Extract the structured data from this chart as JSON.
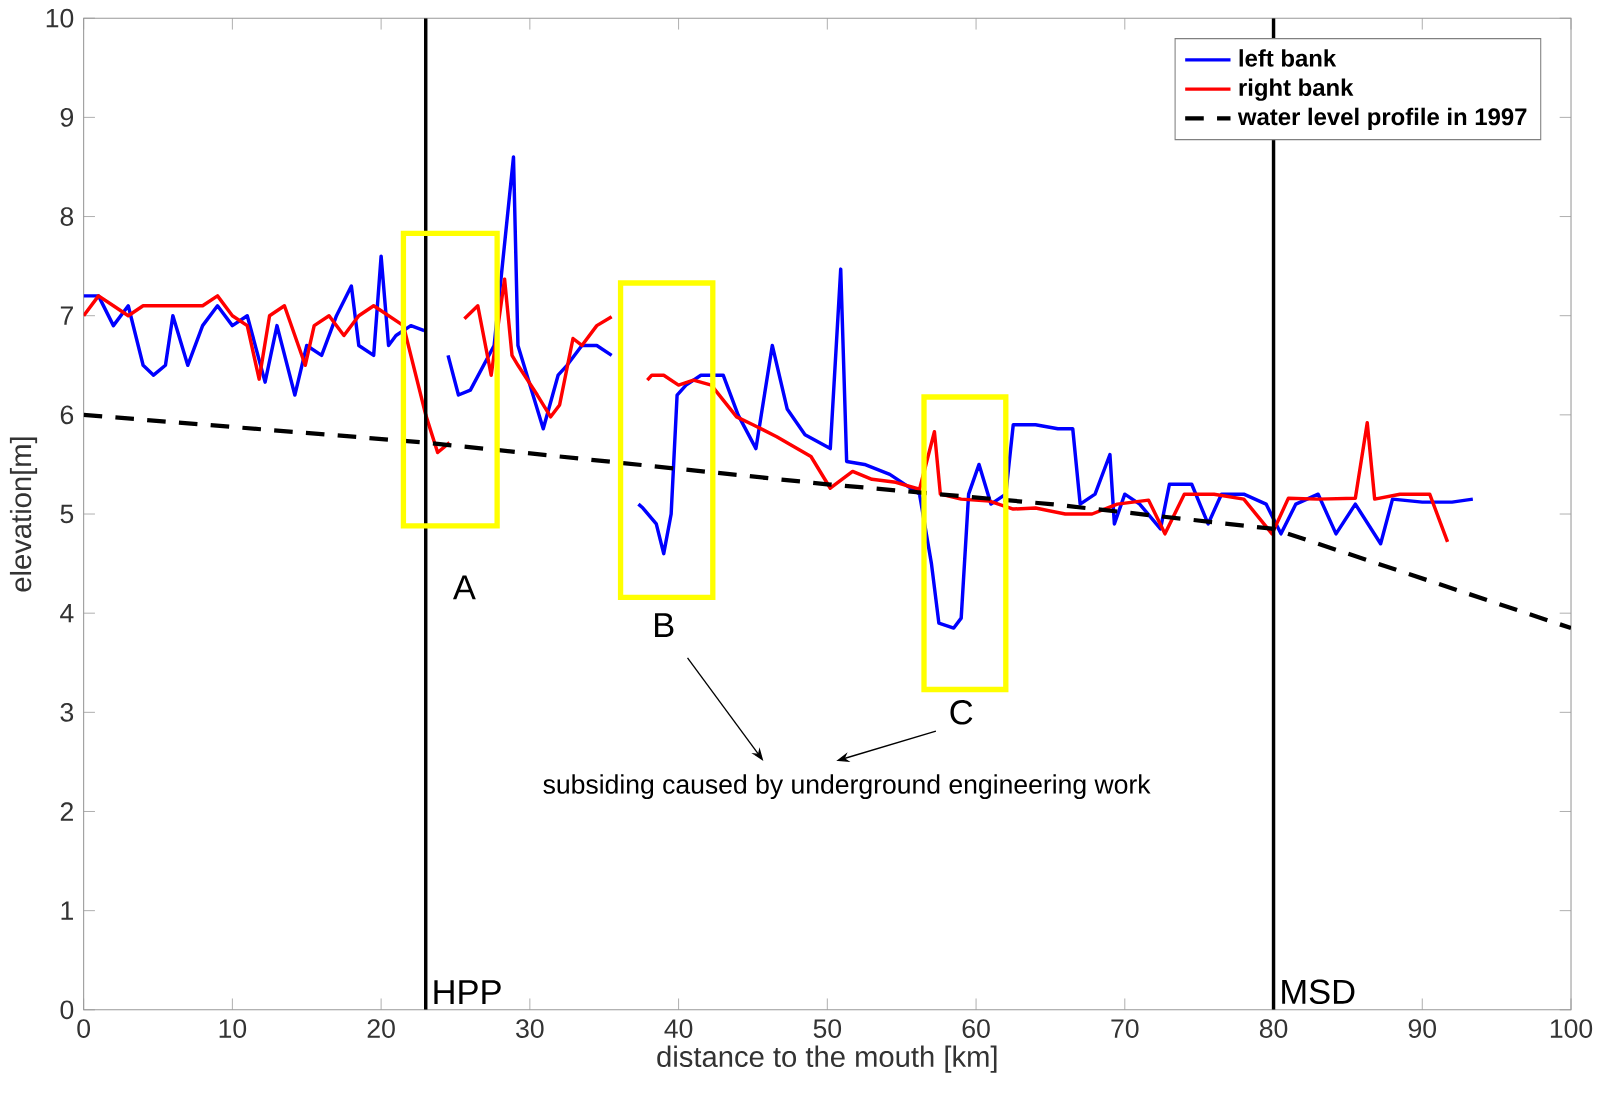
{
  "chart_data": {
    "type": "line",
    "xlabel": "distance to the mouth [km]",
    "ylabel": "elevation[m]",
    "xlim": [
      0,
      100
    ],
    "ylim": [
      0,
      10
    ],
    "xticks": [
      0,
      10,
      20,
      30,
      40,
      50,
      60,
      70,
      80,
      90,
      100
    ],
    "yticks": [
      0,
      1,
      2,
      3,
      4,
      5,
      6,
      7,
      8,
      9,
      10
    ],
    "grid": false,
    "legend": "top right",
    "series": [
      {
        "name": "left bank",
        "color": "#0000ff",
        "x": [
          0,
          1,
          2,
          3,
          4,
          4.7,
          5.5,
          6,
          7,
          8,
          9,
          10,
          11,
          12.2,
          13,
          14.2,
          15,
          16,
          17,
          18,
          18.5,
          19.5,
          20,
          20.5,
          21,
          22,
          22.9,
          23.8,
          24.5,
          25.2,
          26,
          27.6,
          28.9,
          29.2,
          30.9,
          31.9,
          32.5,
          33.5,
          34.5,
          35.5,
          36.5,
          37.3,
          37.6,
          38.5,
          39,
          39.5,
          39.9,
          40.5,
          41.5,
          43,
          44,
          45.2,
          46.3,
          47.3,
          48.5,
          50.2,
          50.9,
          51.3,
          52.5,
          54.2,
          56.2,
          57,
          57.5,
          58.5,
          59,
          59.5,
          60.2,
          61,
          62,
          62.5,
          64,
          65.5,
          66.5,
          67,
          68,
          69,
          69.3,
          70,
          71,
          72.4,
          73,
          74.5,
          75.6,
          76.5,
          78,
          79.5,
          80.5,
          81.5,
          83,
          84.2,
          85.5,
          87.2,
          88,
          90,
          92,
          93.4
        ],
        "values": [
          7.2,
          7.2,
          6.9,
          7.1,
          6.5,
          6.4,
          6.5,
          7.0,
          6.5,
          6.9,
          7.1,
          6.9,
          7.0,
          6.33,
          6.9,
          6.2,
          6.7,
          6.6,
          7.0,
          7.3,
          6.7,
          6.6,
          7.6,
          6.7,
          6.8,
          6.9,
          6.85,
          null,
          6.6,
          6.2,
          6.25,
          6.7,
          8.6,
          6.7,
          5.86,
          6.4,
          6.5,
          6.7,
          6.7,
          6.6,
          null,
          5.1,
          5.06,
          4.9,
          4.6,
          5.0,
          6.2,
          6.3,
          6.4,
          6.4,
          6.0,
          5.66,
          6.7,
          6.06,
          5.8,
          5.66,
          7.47,
          5.53,
          5.5,
          5.4,
          5.2,
          4.5,
          3.9,
          3.85,
          3.95,
          5.2,
          5.5,
          5.1,
          5.2,
          5.9,
          5.9,
          5.86,
          5.86,
          5.1,
          5.2,
          5.6,
          4.9,
          5.2,
          5.1,
          4.85,
          5.3,
          5.3,
          4.9,
          5.2,
          5.2,
          5.1,
          4.8,
          5.1,
          5.2,
          4.8,
          5.1,
          4.7,
          5.15,
          5.12,
          5.12,
          5.15
        ]
      },
      {
        "name": "right bank",
        "color": "#ff0000",
        "x": [
          0,
          1,
          2,
          3,
          4,
          5,
          6,
          7,
          8,
          9,
          10,
          11,
          11.8,
          12.5,
          13.5,
          14.9,
          15.5,
          16.5,
          17.5,
          18.5,
          19.5,
          20.5,
          21.5,
          22.5,
          23,
          23.8,
          24.6,
          25.0,
          25.6,
          26.5,
          27.4,
          28.3,
          28.8,
          29.2,
          30.5,
          31.4,
          32,
          32.9,
          33.5,
          34.5,
          35.5,
          36.5,
          37.9,
          38.2,
          39,
          40,
          41,
          42.2,
          43.9,
          45,
          46.6,
          47.5,
          48.9,
          50.2,
          51.7,
          53,
          54.6,
          56.2,
          57.2,
          57.6,
          59,
          60.9,
          62.5,
          64,
          66,
          67.8,
          69.5,
          71.6,
          72.7,
          74,
          76,
          78,
          79.9,
          81,
          83,
          85.5,
          86.3,
          86.8,
          88.5,
          90.5,
          91.7
        ],
        "values": [
          7.0,
          7.2,
          7.1,
          7.0,
          7.1,
          7.1,
          7.1,
          7.1,
          7.1,
          7.2,
          7.0,
          6.9,
          6.36,
          7.0,
          7.1,
          6.5,
          6.9,
          7.0,
          6.8,
          7.0,
          7.1,
          7.0,
          6.9,
          6.3,
          6.0,
          5.62,
          5.72,
          null,
          6.97,
          7.1,
          6.4,
          7.37,
          6.6,
          6.5,
          6.2,
          5.98,
          6.1,
          6.77,
          6.7,
          6.9,
          6.99,
          null,
          6.35,
          6.4,
          6.4,
          6.3,
          6.35,
          6.3,
          5.98,
          5.9,
          5.78,
          5.7,
          5.58,
          5.26,
          5.43,
          5.35,
          5.32,
          5.25,
          5.83,
          5.2,
          5.15,
          5.13,
          5.05,
          5.06,
          5.0,
          5.0,
          5.1,
          5.14,
          4.8,
          5.2,
          5.2,
          5.15,
          4.8,
          5.16,
          5.15,
          5.16,
          5.92,
          5.15,
          5.2,
          5.2,
          4.72
        ]
      },
      {
        "name": "water level profile in 1997",
        "color": "#000000",
        "line_style": "dashed",
        "x": [
          0,
          23,
          50,
          65,
          80,
          100
        ],
        "values": [
          6.0,
          5.72,
          5.3,
          5.1,
          4.85,
          3.85
        ]
      }
    ],
    "ref_lines": [
      {
        "axis": "x",
        "value": 23,
        "label": "HPP",
        "color": "#000000"
      },
      {
        "axis": "x",
        "value": 80,
        "label": "MSD",
        "color": "#000000"
      }
    ],
    "annotations": [
      "A",
      "B",
      "C",
      "subsiding caused by underground engineering work"
    ]
  }
}
